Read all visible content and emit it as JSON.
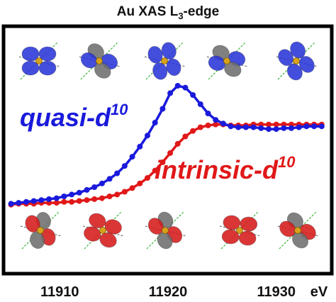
{
  "chart_data": {
    "type": "line",
    "title": "Au XAS L",
    "title_subscript": "3",
    "title_suffix": "-edge",
    "xlabel": "",
    "ylabel": "",
    "x_unit": "eV",
    "xlim": [
      11905,
      11935
    ],
    "ylim": [
      0,
      1.4
    ],
    "x_ticks": [
      11910,
      11920,
      11930
    ],
    "grid": false,
    "legend": "none",
    "series": [
      {
        "name": "quasi-d",
        "name_superscript": "10",
        "color": "#1a1adc",
        "x": [
          11905.5,
          11906.2,
          11906.9,
          11907.6,
          11908.3,
          11909.0,
          11909.7,
          11910.4,
          11911.1,
          11911.8,
          11912.5,
          11913.2,
          11913.9,
          11914.6,
          11915.3,
          11916.0,
          11916.7,
          11917.4,
          11918.1,
          11918.8,
          11919.5,
          11920.2,
          11920.9,
          11921.6,
          11922.3,
          11923.0,
          11923.7,
          11924.4,
          11925.1,
          11925.8,
          11926.5,
          11927.2,
          11927.9,
          11928.6,
          11929.3,
          11930.0,
          11930.7,
          11931.4,
          11932.1,
          11932.8,
          11933.5,
          11934.2
        ],
        "y": [
          0.02,
          0.03,
          0.04,
          0.05,
          0.06,
          0.07,
          0.08,
          0.1,
          0.12,
          0.14,
          0.17,
          0.2,
          0.24,
          0.29,
          0.35,
          0.43,
          0.53,
          0.64,
          0.76,
          0.9,
          1.05,
          1.22,
          1.3,
          1.28,
          1.2,
          1.1,
          1.0,
          0.93,
          0.89,
          0.86,
          0.85,
          0.85,
          0.85,
          0.84,
          0.83,
          0.83,
          0.84,
          0.84,
          0.85,
          0.86,
          0.86,
          0.86
        ]
      },
      {
        "name": "intrinsic-d",
        "name_superscript": "10",
        "color": "#e01818",
        "x": [
          11905.5,
          11906.2,
          11906.9,
          11907.6,
          11908.3,
          11909.0,
          11909.7,
          11910.4,
          11911.1,
          11911.8,
          11912.5,
          11913.2,
          11913.9,
          11914.6,
          11915.3,
          11916.0,
          11916.7,
          11917.4,
          11918.1,
          11918.8,
          11919.5,
          11920.2,
          11920.9,
          11921.6,
          11922.3,
          11923.0,
          11923.7,
          11924.4,
          11925.1,
          11925.8,
          11926.5,
          11927.2,
          11927.9,
          11928.6,
          11929.3,
          11930.0,
          11930.7,
          11931.4,
          11932.1,
          11932.8,
          11933.5,
          11934.2
        ],
        "y": [
          0.01,
          0.02,
          0.02,
          0.02,
          0.03,
          0.03,
          0.03,
          0.04,
          0.04,
          0.05,
          0.06,
          0.07,
          0.08,
          0.1,
          0.12,
          0.15,
          0.19,
          0.24,
          0.3,
          0.38,
          0.47,
          0.57,
          0.67,
          0.75,
          0.81,
          0.85,
          0.87,
          0.88,
          0.88,
          0.87,
          0.87,
          0.87,
          0.88,
          0.88,
          0.88,
          0.88,
          0.88,
          0.88,
          0.88,
          0.88,
          0.88,
          0.88
        ]
      }
    ]
  },
  "orbital_icons": {
    "top_row": [
      "blue-gray-orbital",
      "blue-gray-orbital",
      "blue-gray-orbital",
      "blue-gray-orbital",
      "blue-gray-orbital"
    ],
    "bottom_row": [
      "red-gray-orbital",
      "red-gray-orbital",
      "red-gray-orbital",
      "red-gray-orbital",
      "red-gray-orbital"
    ]
  },
  "colors": {
    "frame": "#000000",
    "orbital_gray": "#6e6e6e",
    "orbital_blue": "#2a35d8",
    "orbital_red": "#d61a1a",
    "gold": "#d9a21c"
  }
}
